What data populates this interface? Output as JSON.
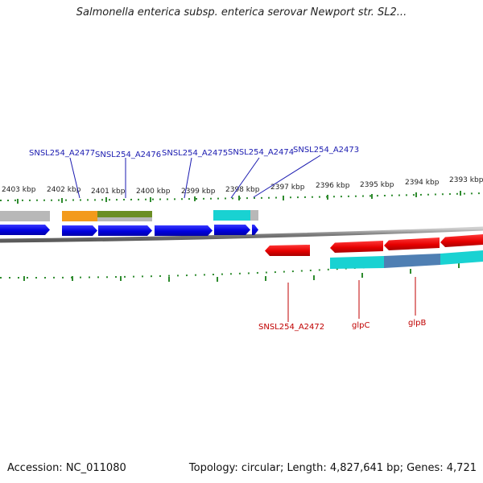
{
  "header": {
    "title": "Salmonella enterica subsp. enterica serovar Newport str. SL2..."
  },
  "footer": {
    "accession": "Accession: NC_011080",
    "summary": "Topology: circular; Length: 4,827,641 bp; Genes: 4,721"
  },
  "ruler": {
    "ticks": [
      "2403 kbp",
      "2402 kbp",
      "2401 kbp",
      "2400 kbp",
      "2399 kbp",
      "2398 kbp",
      "2397 kbp",
      "2396 kbp",
      "2395 kbp",
      "2394 kbp",
      "2393 kbp"
    ]
  },
  "labels": {
    "top": [
      "SNSL254_A2477",
      "SNSL254_A2476",
      "SNSL254_A2475",
      "SNSL254_A2474",
      "SNSL254_A2473"
    ],
    "bottom": [
      "SNSL254_A2472",
      "glpC",
      "glpB"
    ]
  },
  "colors": {
    "forward_gene": "#0000e6",
    "reverse_gene": "#e60000",
    "top_label": "#1a1ab0",
    "bottom_label": "#c00000",
    "tick": "#2e8b2e",
    "backbone": "#808080",
    "orange": "#f39a1c",
    "olive": "#6b8e23",
    "cyan": "#19d2d2",
    "steel": "#4f7fb3",
    "grey": "#b5b5b5"
  }
}
